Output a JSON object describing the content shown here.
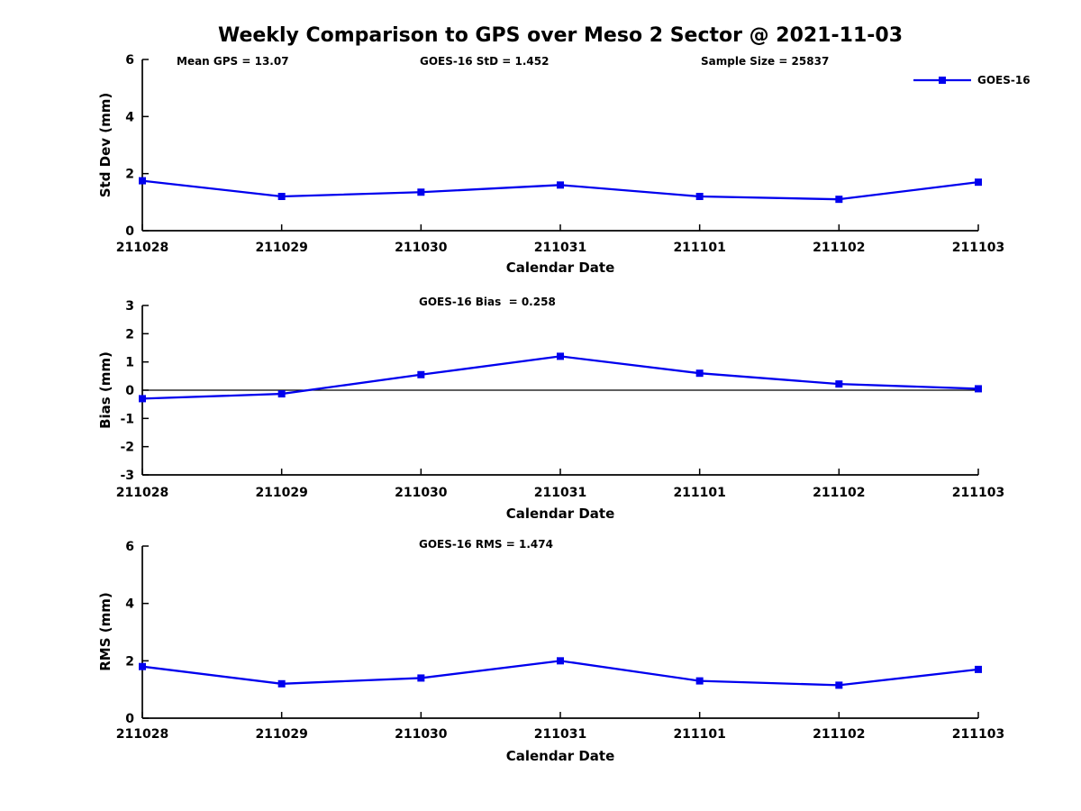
{
  "figure": {
    "title": "Weekly Comparison to GPS over Meso 2 Sector @ 2021-11-03"
  },
  "colors": {
    "series": "#0000EE",
    "axis": "#000000",
    "background": "#FFFFFF",
    "text": "#000000"
  },
  "chart_data": [
    {
      "type": "line",
      "x": [
        "211028",
        "211029",
        "211030",
        "211031",
        "211101",
        "211102",
        "211103"
      ],
      "series": [
        {
          "name": "GOES-16",
          "values": [
            1.75,
            1.2,
            1.35,
            1.6,
            1.2,
            1.1,
            1.7
          ]
        }
      ],
      "annotations": [
        {
          "text": "Mean GPS = 13.07"
        },
        {
          "text": "GOES-16 StD = 1.452"
        },
        {
          "text": "Sample Size = 25837"
        }
      ],
      "xlabel": "Calendar Date",
      "ylabel": "Std Dev (mm)",
      "ylim": [
        0,
        6
      ],
      "yticks": [
        0,
        2,
        4,
        6
      ],
      "grid": false,
      "legend_position": "top-right",
      "marker": "square"
    },
    {
      "type": "line",
      "x": [
        "211028",
        "211029",
        "211030",
        "211031",
        "211101",
        "211102",
        "211103"
      ],
      "series": [
        {
          "name": "GOES-16",
          "values": [
            -0.3,
            -0.13,
            0.55,
            1.2,
            0.6,
            0.22,
            0.05
          ]
        }
      ],
      "annotations": [
        {
          "text": "GOES-16 Bias  = 0.258"
        }
      ],
      "xlabel": "Calendar Date",
      "ylabel": "Bias (mm)",
      "ylim": [
        -3,
        3
      ],
      "yticks": [
        -3,
        -2,
        -1,
        0,
        1,
        2,
        3
      ],
      "zero_line": true,
      "grid": false,
      "marker": "square"
    },
    {
      "type": "line",
      "x": [
        "211028",
        "211029",
        "211030",
        "211031",
        "211101",
        "211102",
        "211103"
      ],
      "series": [
        {
          "name": "GOES-16",
          "values": [
            1.8,
            1.2,
            1.4,
            2.0,
            1.3,
            1.15,
            1.7
          ]
        }
      ],
      "annotations": [
        {
          "text": "GOES-16 RMS = 1.474"
        }
      ],
      "xlabel": "Calendar Date",
      "ylabel": "RMS (mm)",
      "ylim": [
        0,
        6
      ],
      "yticks": [
        0,
        2,
        4,
        6
      ],
      "grid": false,
      "marker": "square"
    }
  ]
}
